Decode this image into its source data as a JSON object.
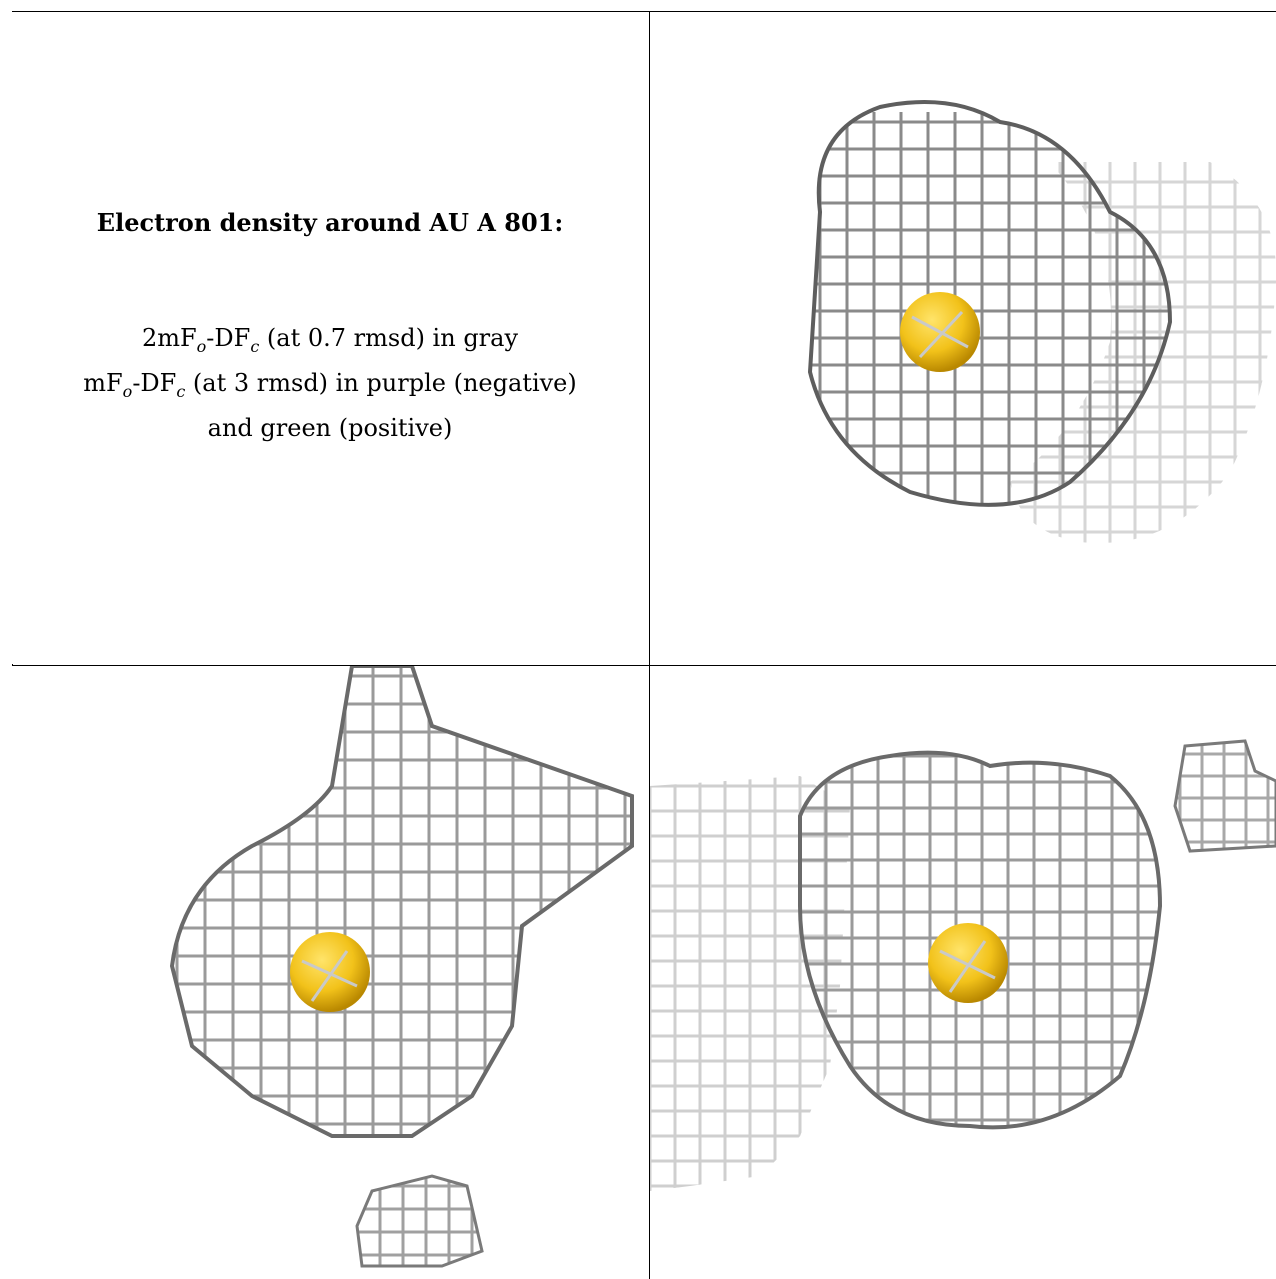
{
  "caption": {
    "title": "Electron density around AU A 801:",
    "line1": {
      "a": "2mF",
      "sub1": "o",
      "b": "-DF",
      "sub2": "c",
      "c": " (at 0.7 rmsd) in gray"
    },
    "line2": {
      "a": "mF",
      "sub1": "o",
      "b": "-DF",
      "sub2": "c",
      "c": " (at 3 rmsd) in purple (negative)"
    },
    "line3": "and green (positive)"
  },
  "colors": {
    "mesh_dark": "#6e6e6e",
    "mesh_mid": "#a9a9a9",
    "mesh_light": "#d6d6d6",
    "atom": "#f2c21a",
    "atom_shade": "#c99400"
  },
  "panels": [
    {
      "id": "top-right",
      "atom": "gold-atom"
    },
    {
      "id": "bottom-left",
      "atom": "gold-atom"
    },
    {
      "id": "bottom-right",
      "atom": "gold-atom"
    }
  ]
}
